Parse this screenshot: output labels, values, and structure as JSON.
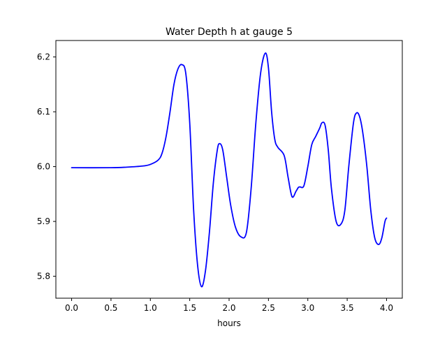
{
  "chart_data": {
    "type": "line",
    "title": "Water Depth h at gauge 5",
    "xlabel": "hours",
    "ylabel": "",
    "xlim": [
      -0.2,
      4.2
    ],
    "ylim": [
      5.76,
      6.23
    ],
    "xticks": [
      0.0,
      0.5,
      1.0,
      1.5,
      2.0,
      2.5,
      3.0,
      3.5,
      4.0
    ],
    "xtick_labels": [
      "0.0",
      "0.5",
      "1.0",
      "1.5",
      "2.0",
      "2.5",
      "3.0",
      "3.5",
      "4.0"
    ],
    "yticks": [
      5.8,
      5.9,
      6.0,
      6.1,
      6.2
    ],
    "ytick_labels": [
      "5.8",
      "5.9",
      "6.0",
      "6.1",
      "6.2"
    ],
    "grid": false,
    "legend": "none",
    "series": [
      {
        "color": "#0000ff",
        "x": [
          0.0,
          0.5,
          0.7,
          0.9,
          1.0,
          1.1,
          1.15,
          1.2,
          1.25,
          1.3,
          1.35,
          1.4,
          1.45,
          1.5,
          1.55,
          1.6,
          1.65,
          1.7,
          1.75,
          1.8,
          1.85,
          1.88,
          1.92,
          1.97,
          2.02,
          2.08,
          2.15,
          2.22,
          2.28,
          2.34,
          2.4,
          2.46,
          2.5,
          2.54,
          2.58,
          2.62,
          2.7,
          2.75,
          2.8,
          2.85,
          2.88,
          2.9,
          2.95,
          3.0,
          3.05,
          3.1,
          3.15,
          3.18,
          3.22,
          3.26,
          3.3,
          3.36,
          3.42,
          3.47,
          3.52,
          3.58,
          3.62,
          3.66,
          3.7,
          3.75,
          3.8,
          3.85,
          3.9,
          3.94,
          3.98,
          4.0
        ],
        "y": [
          5.998,
          5.998,
          5.999,
          6.001,
          6.004,
          6.012,
          6.025,
          6.055,
          6.1,
          6.15,
          6.178,
          6.186,
          6.17,
          6.08,
          5.92,
          5.82,
          5.781,
          5.81,
          5.88,
          5.97,
          6.03,
          6.042,
          6.03,
          5.98,
          5.93,
          5.89,
          5.872,
          5.88,
          5.96,
          6.08,
          6.17,
          6.207,
          6.18,
          6.1,
          6.05,
          6.035,
          6.02,
          5.98,
          5.945,
          5.955,
          5.962,
          5.963,
          5.965,
          6.0,
          6.04,
          6.055,
          6.07,
          6.08,
          6.075,
          6.03,
          5.96,
          5.9,
          5.895,
          5.92,
          6.0,
          6.08,
          6.098,
          6.09,
          6.06,
          6.0,
          5.92,
          5.87,
          5.858,
          5.87,
          5.9,
          5.906
        ]
      }
    ]
  }
}
